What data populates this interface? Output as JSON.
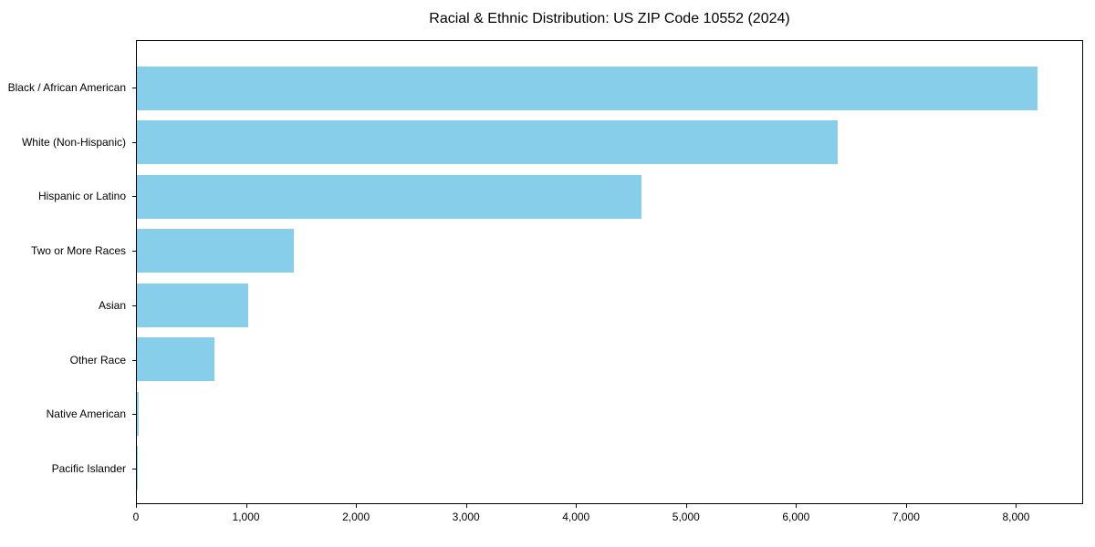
{
  "chart_data": {
    "type": "bar",
    "orientation": "horizontal",
    "title": "Racial & Ethnic Distribution: US ZIP Code 10552 (2024)",
    "categories": [
      "Black / African American",
      "White (Non-Hispanic)",
      "Hispanic or Latino",
      "Two or More Races",
      "Asian",
      "Other Race",
      "Native American",
      "Pacific Islander"
    ],
    "values": [
      8200,
      6380,
      4600,
      1430,
      1010,
      705,
      20,
      8
    ],
    "xlabel": "",
    "ylabel": "",
    "xlim": [
      0,
      8610
    ],
    "x_ticks": [
      0,
      1000,
      2000,
      3000,
      4000,
      5000,
      6000,
      7000,
      8000
    ],
    "x_tick_labels": [
      "0",
      "1,000",
      "2,000",
      "3,000",
      "4,000",
      "5,000",
      "6,000",
      "7,000",
      "8,000"
    ],
    "grid": "off",
    "legend": "none",
    "bar_color": "#87CEEB",
    "text_color": "#000000",
    "axis_color": "#000000",
    "background_color": "#FFFFFF"
  }
}
